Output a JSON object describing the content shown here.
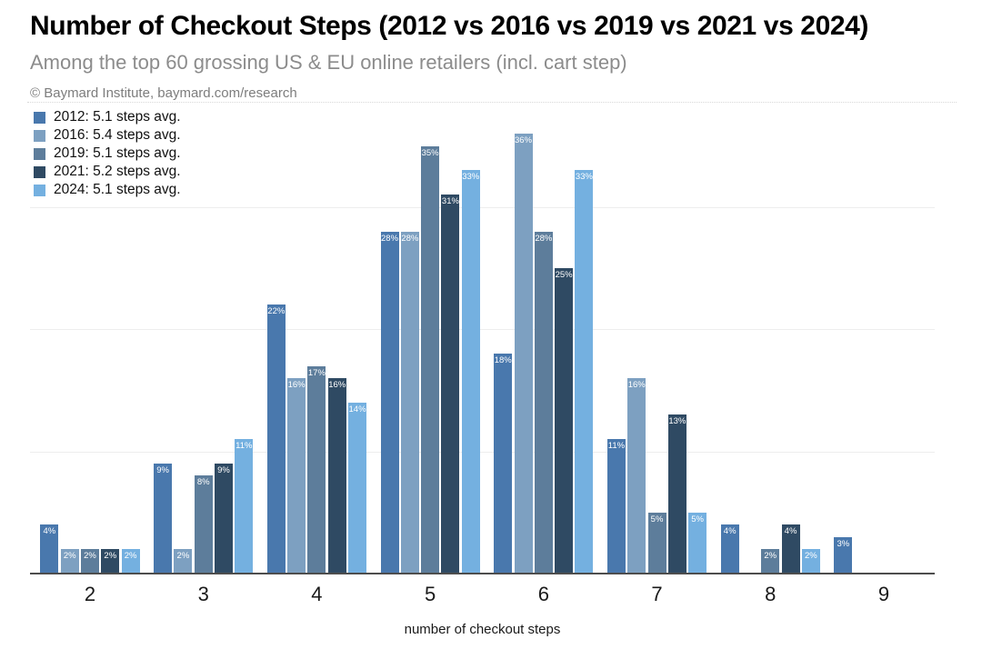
{
  "header": {
    "title": "Number of Checkout Steps (2012 vs 2016 vs 2019 vs 2021 vs 2024)",
    "subtitle": "Among the top 60 grossing US & EU online retailers (incl. cart step)",
    "attribution": "© Baymard Institute, baymard.com/research"
  },
  "legend": {
    "items": [
      {
        "label": "2012: 5.1 steps avg.",
        "color": "#4978ad"
      },
      {
        "label": "2016: 5.4 steps avg.",
        "color": "#7da0c1"
      },
      {
        "label": "2019: 5.1 steps avg.",
        "color": "#5d7d9b"
      },
      {
        "label": "2021: 5.2 steps avg.",
        "color": "#2f4a63"
      },
      {
        "label": "2024: 5.1 steps avg.",
        "color": "#74b0e0"
      }
    ]
  },
  "chart_data": {
    "type": "bar",
    "title": "Number of Checkout Steps (2012 vs 2016 vs 2019 vs 2021 vs 2024)",
    "subtitle": "Among the top 60 grossing US & EU online retailers (incl. cart step)",
    "categories": [
      "2",
      "3",
      "4",
      "5",
      "6",
      "7",
      "8",
      "9"
    ],
    "series": [
      {
        "name": "2012",
        "avg_label": "2012: 5.1 steps avg.",
        "color": "#4978ad",
        "values": [
          4,
          9,
          22,
          28,
          18,
          11,
          4,
          3
        ]
      },
      {
        "name": "2016",
        "avg_label": "2016: 5.4 steps avg.",
        "color": "#7da0c1",
        "values": [
          2,
          2,
          16,
          28,
          36,
          16,
          null,
          null
        ]
      },
      {
        "name": "2019",
        "avg_label": "2019: 5.1 steps avg.",
        "color": "#5d7d9b",
        "values": [
          2,
          8,
          17,
          35,
          28,
          5,
          2,
          null
        ]
      },
      {
        "name": "2021",
        "avg_label": "2021: 5.2 steps avg.",
        "color": "#2f4a63",
        "values": [
          2,
          9,
          16,
          31,
          25,
          13,
          4,
          null
        ]
      },
      {
        "name": "2024",
        "avg_label": "2024: 5.1 steps avg.",
        "color": "#74b0e0",
        "values": [
          2,
          11,
          14,
          33,
          33,
          5,
          2,
          null
        ]
      }
    ],
    "xlabel": "number of checkout steps",
    "ylabel": "",
    "ylim": [
      0,
      38
    ],
    "gridlines_percent": [
      10,
      20,
      30
    ],
    "bar_label_format": "{v}%",
    "legend_position": "top-left",
    "y_axis_labels_shown": false
  }
}
